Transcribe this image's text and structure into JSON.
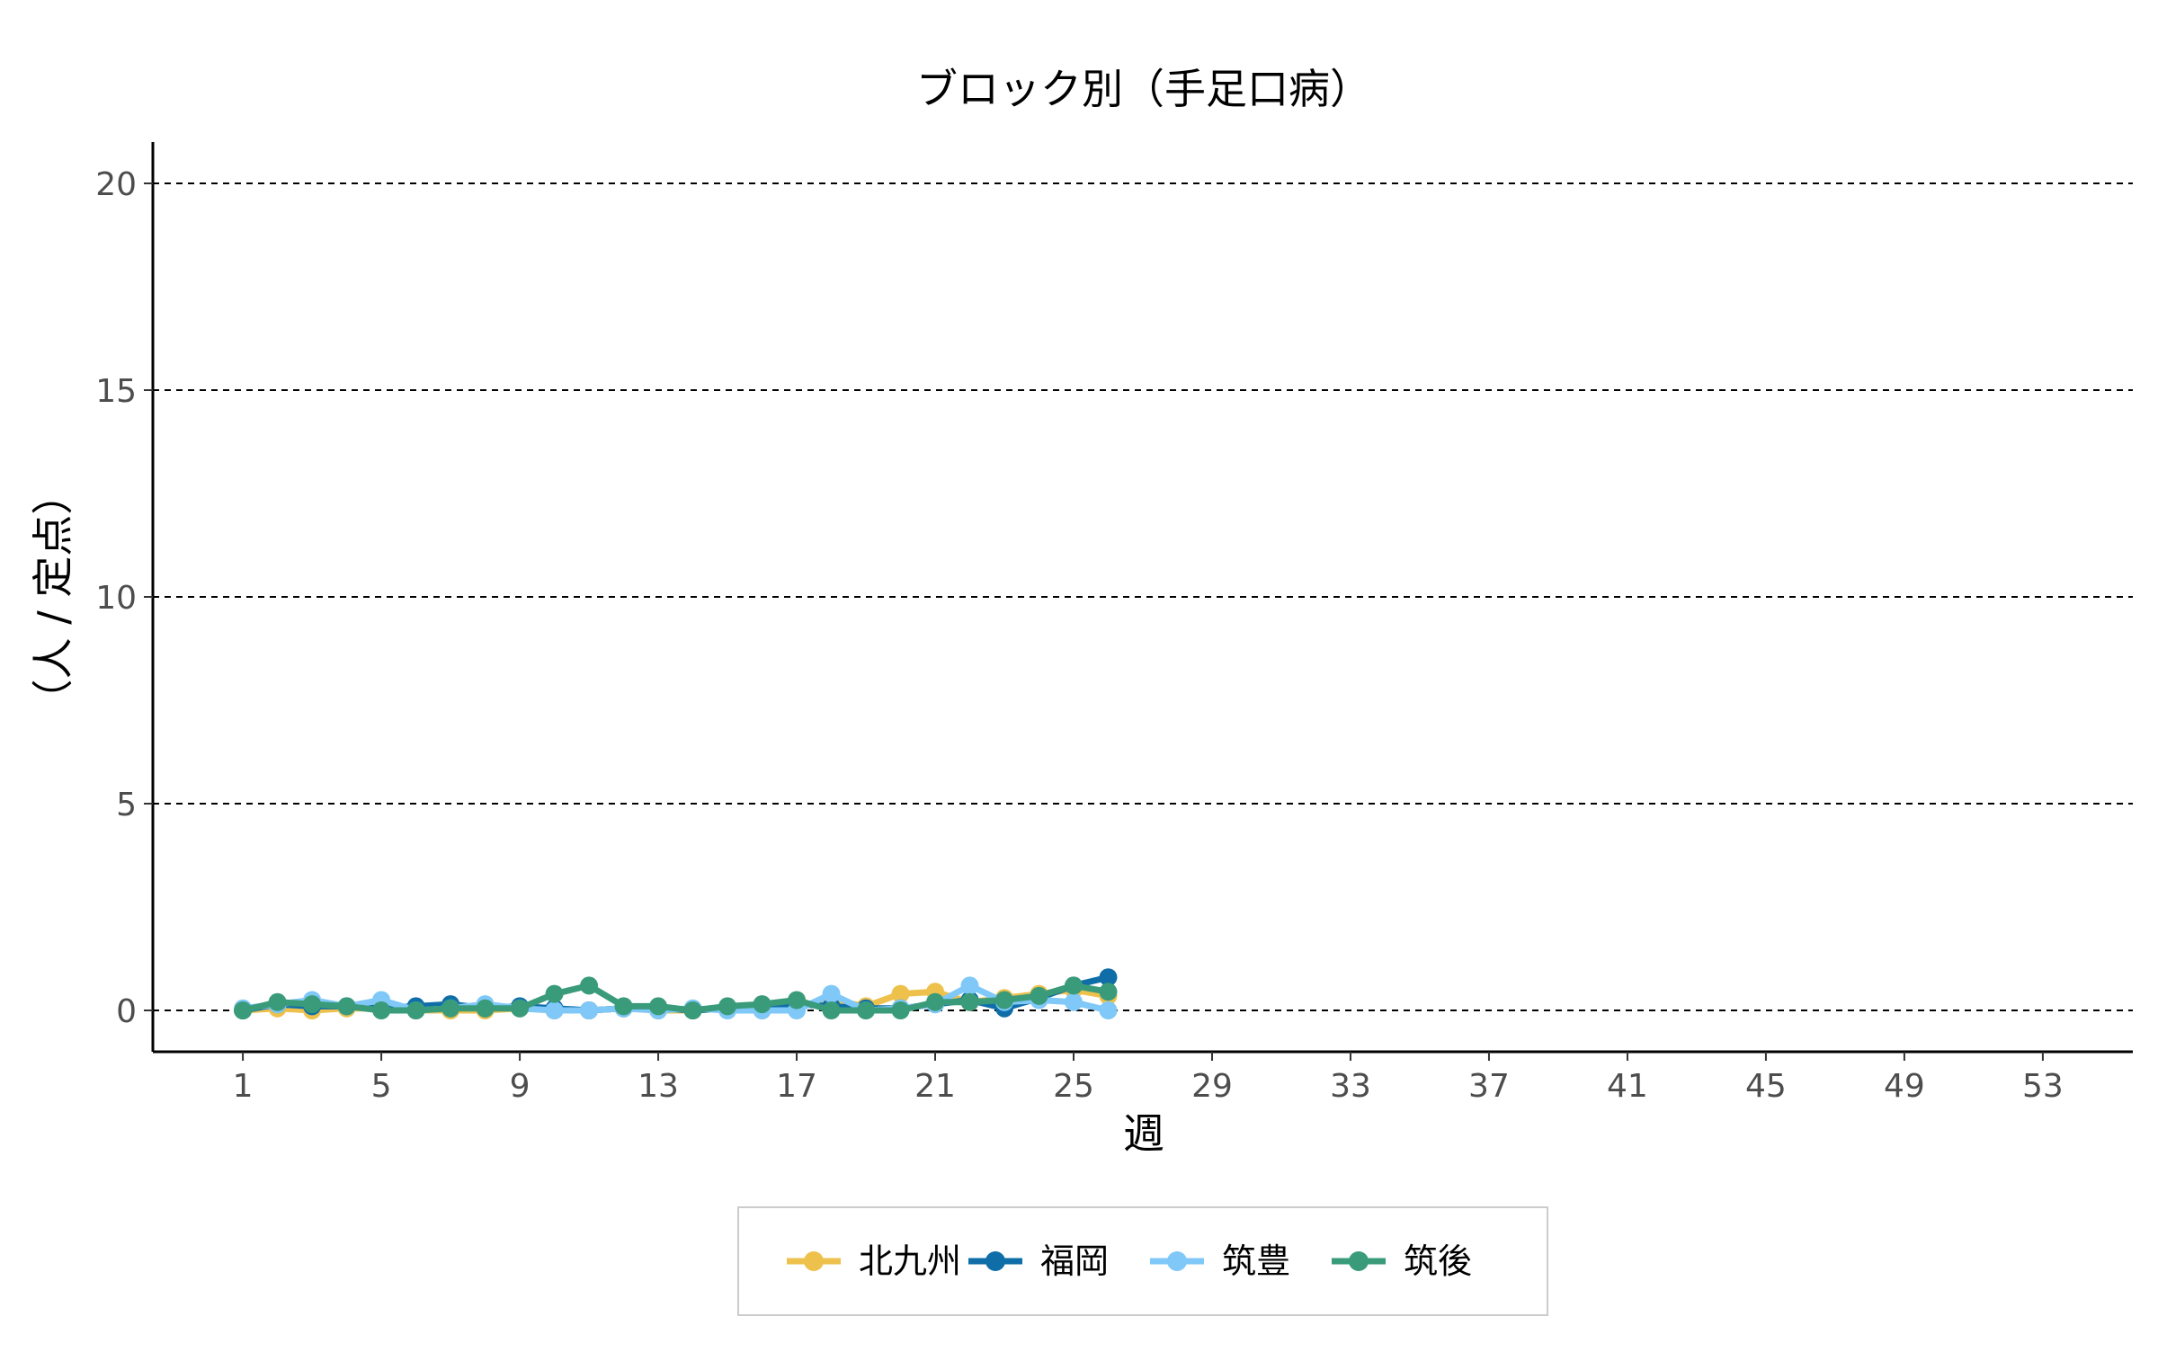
{
  "chart_data": {
    "type": "line",
    "title": "ブロック別（手足口病）",
    "xlabel": "週",
    "ylabel": "（人 / 定点）",
    "xlim": [
      -1.6,
      55.6
    ],
    "ylim": [
      -1,
      21
    ],
    "xticks": [
      1,
      5,
      9,
      13,
      17,
      21,
      25,
      29,
      33,
      37,
      41,
      45,
      49,
      53
    ],
    "yticks": [
      0,
      5,
      10,
      15,
      20
    ],
    "grid": "horizontal dashed",
    "legend_position": "bottom",
    "x": [
      1,
      2,
      3,
      4,
      5,
      6,
      7,
      8,
      9,
      10,
      11,
      12,
      13,
      14,
      15,
      16,
      17,
      18,
      19,
      20,
      21,
      22,
      23,
      24,
      25,
      26
    ],
    "series": [
      {
        "name": "北九州",
        "color": "#EEC14D",
        "values": [
          0.0,
          0.05,
          0.0,
          0.05,
          0.05,
          0.0,
          0.0,
          0.0,
          0.05,
          0.0,
          0.0,
          0.05,
          0.0,
          0.0,
          0.05,
          0.0,
          0.1,
          0.25,
          0.1,
          0.4,
          0.45,
          0.2,
          0.3,
          0.4,
          0.5,
          0.35
        ]
      },
      {
        "name": "福岡",
        "color": "#0F6EA8",
        "values": [
          0.0,
          0.15,
          0.1,
          0.1,
          0.05,
          0.1,
          0.15,
          0.05,
          0.1,
          0.05,
          0.0,
          0.05,
          0.05,
          0.0,
          0.05,
          0.1,
          0.15,
          0.1,
          0.05,
          0.05,
          0.15,
          0.25,
          0.05,
          0.3,
          0.6,
          0.8
        ]
      },
      {
        "name": "筑豊",
        "color": "#7FC8F8",
        "values": [
          0.05,
          0.15,
          0.25,
          0.1,
          0.25,
          0.0,
          0.05,
          0.15,
          0.05,
          0.0,
          0.0,
          0.05,
          0.0,
          0.05,
          0.0,
          0.0,
          0.0,
          0.4,
          0.0,
          0.05,
          0.15,
          0.6,
          0.2,
          0.25,
          0.2,
          0.0
        ]
      },
      {
        "name": "筑後",
        "color": "#3A9B7A",
        "values": [
          0.0,
          0.2,
          0.15,
          0.1,
          0.0,
          0.0,
          0.05,
          0.05,
          0.05,
          0.4,
          0.6,
          0.1,
          0.1,
          0.0,
          0.1,
          0.15,
          0.25,
          0.0,
          0.0,
          0.0,
          0.2,
          0.2,
          0.25,
          0.35,
          0.6,
          0.45
        ]
      }
    ]
  }
}
